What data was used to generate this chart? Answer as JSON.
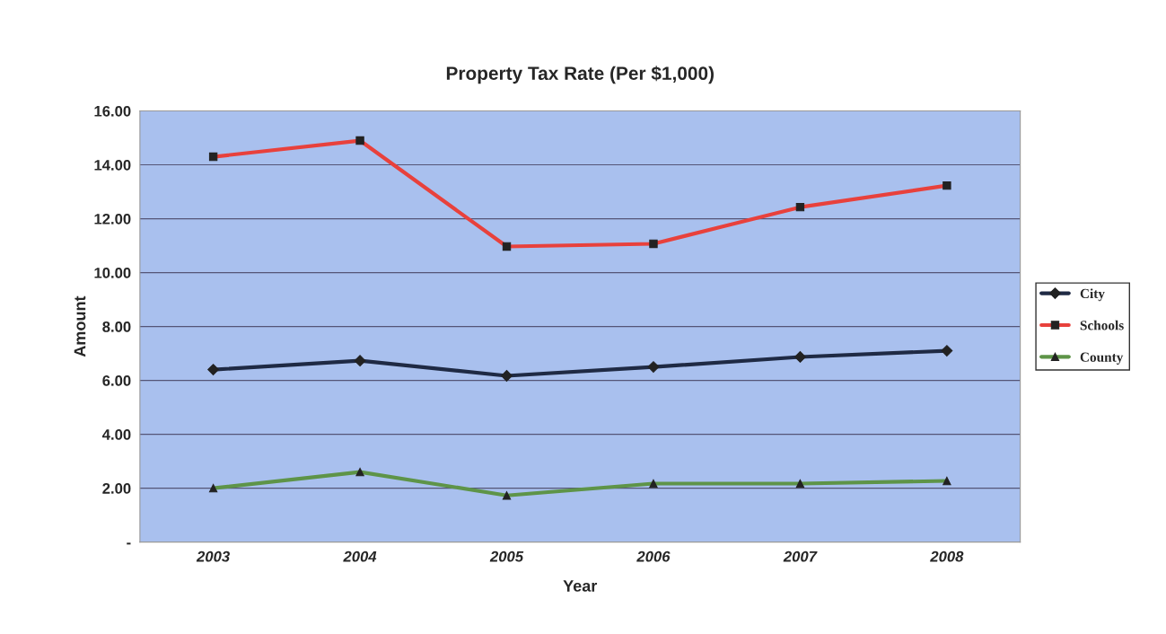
{
  "chart_data": {
    "type": "line",
    "title": "Property Tax Rate (Per $1,000)",
    "xlabel": "Year",
    "ylabel": "Amount",
    "categories": [
      "2003",
      "2004",
      "2005",
      "2006",
      "2007",
      "2008"
    ],
    "series": [
      {
        "name": "City",
        "color": "#1f2a44",
        "marker": "diamond",
        "values": [
          6.4,
          6.73,
          6.17,
          6.5,
          6.87,
          7.1
        ]
      },
      {
        "name": "Schools",
        "color": "#e8413c",
        "marker": "square",
        "values": [
          14.3,
          14.9,
          10.97,
          11.07,
          12.43,
          13.23
        ]
      },
      {
        "name": "County",
        "color": "#5e9448",
        "marker": "triangle",
        "values": [
          2.0,
          2.6,
          1.73,
          2.17,
          2.17,
          2.27
        ]
      }
    ],
    "ylim": [
      0,
      16
    ],
    "yticks": [
      {
        "value": 0,
        "label": "-"
      },
      {
        "value": 2,
        "label": "2.00"
      },
      {
        "value": 4,
        "label": "4.00"
      },
      {
        "value": 6,
        "label": "6.00"
      },
      {
        "value": 8,
        "label": "8.00"
      },
      {
        "value": 10,
        "label": "10.00"
      },
      {
        "value": 12,
        "label": "12.00"
      },
      {
        "value": 14,
        "label": "14.00"
      },
      {
        "value": 16,
        "label": "16.00"
      }
    ],
    "grid": "y",
    "legend": "right",
    "line_style": "solid"
  }
}
